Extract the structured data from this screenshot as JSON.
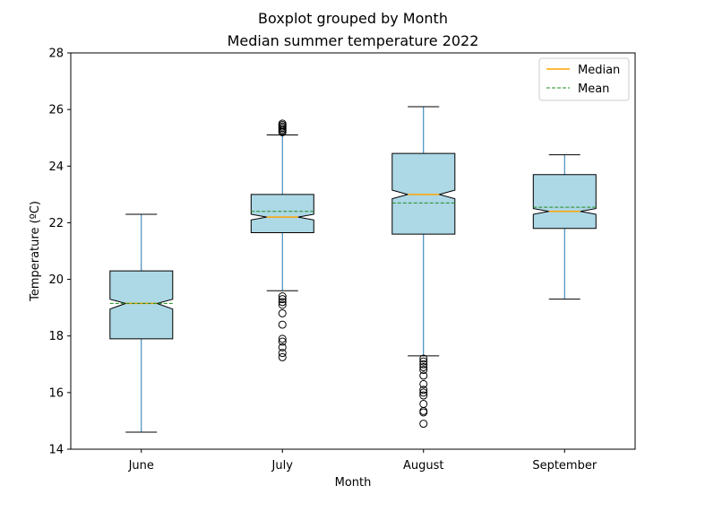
{
  "chart_data": {
    "type": "boxplot",
    "suptitle": "Boxplot grouped by Month",
    "title": "Median summer temperature 2022",
    "xlabel": "Month",
    "ylabel": "Temperature (ºC)",
    "ylim": [
      14,
      28
    ],
    "yticks": [
      14,
      16,
      18,
      20,
      22,
      24,
      26,
      28
    ],
    "grid": false,
    "notched": true,
    "legend_position": "top-right",
    "legend": [
      {
        "label": "Median",
        "style": "solid",
        "color": "#ffa500"
      },
      {
        "label": "Mean",
        "style": "dashed",
        "color": "#228b22"
      }
    ],
    "colors": {
      "box_fill": "#add8e6",
      "whisker": "#1f77b4",
      "median": "#ffa500",
      "mean": "#228b22"
    },
    "categories": [
      "June",
      "July",
      "August",
      "September"
    ],
    "boxes": [
      {
        "category": "June",
        "whisker_low": 14.6,
        "q1": 17.9,
        "median": 19.15,
        "mean": 19.15,
        "q3": 20.3,
        "whisker_high": 22.3,
        "notch_low": 18.95,
        "notch_high": 19.3,
        "fliers": []
      },
      {
        "category": "July",
        "whisker_low": 19.6,
        "q1": 21.65,
        "median": 22.2,
        "mean": 22.4,
        "q3": 23.0,
        "whisker_high": 25.1,
        "notch_low": 22.1,
        "notch_high": 22.3,
        "fliers": [
          19.4,
          19.3,
          19.2,
          19.1,
          18.8,
          18.4,
          17.9,
          17.8,
          17.6,
          17.4,
          17.25,
          25.2,
          25.25,
          25.3,
          25.35,
          25.4,
          25.45,
          25.5
        ]
      },
      {
        "category": "August",
        "whisker_low": 17.3,
        "q1": 21.6,
        "median": 23.0,
        "mean": 22.7,
        "q3": 24.45,
        "whisker_high": 26.1,
        "notch_low": 22.85,
        "notch_high": 23.15,
        "fliers": [
          17.2,
          17.1,
          17.0,
          16.9,
          16.8,
          16.6,
          16.3,
          16.1,
          16.0,
          15.9,
          15.6,
          15.35,
          15.3,
          14.9
        ]
      },
      {
        "category": "September",
        "whisker_low": 19.3,
        "q1": 21.8,
        "median": 22.4,
        "mean": 22.55,
        "q3": 23.7,
        "whisker_high": 24.4,
        "notch_low": 22.3,
        "notch_high": 22.5,
        "fliers": []
      }
    ]
  }
}
